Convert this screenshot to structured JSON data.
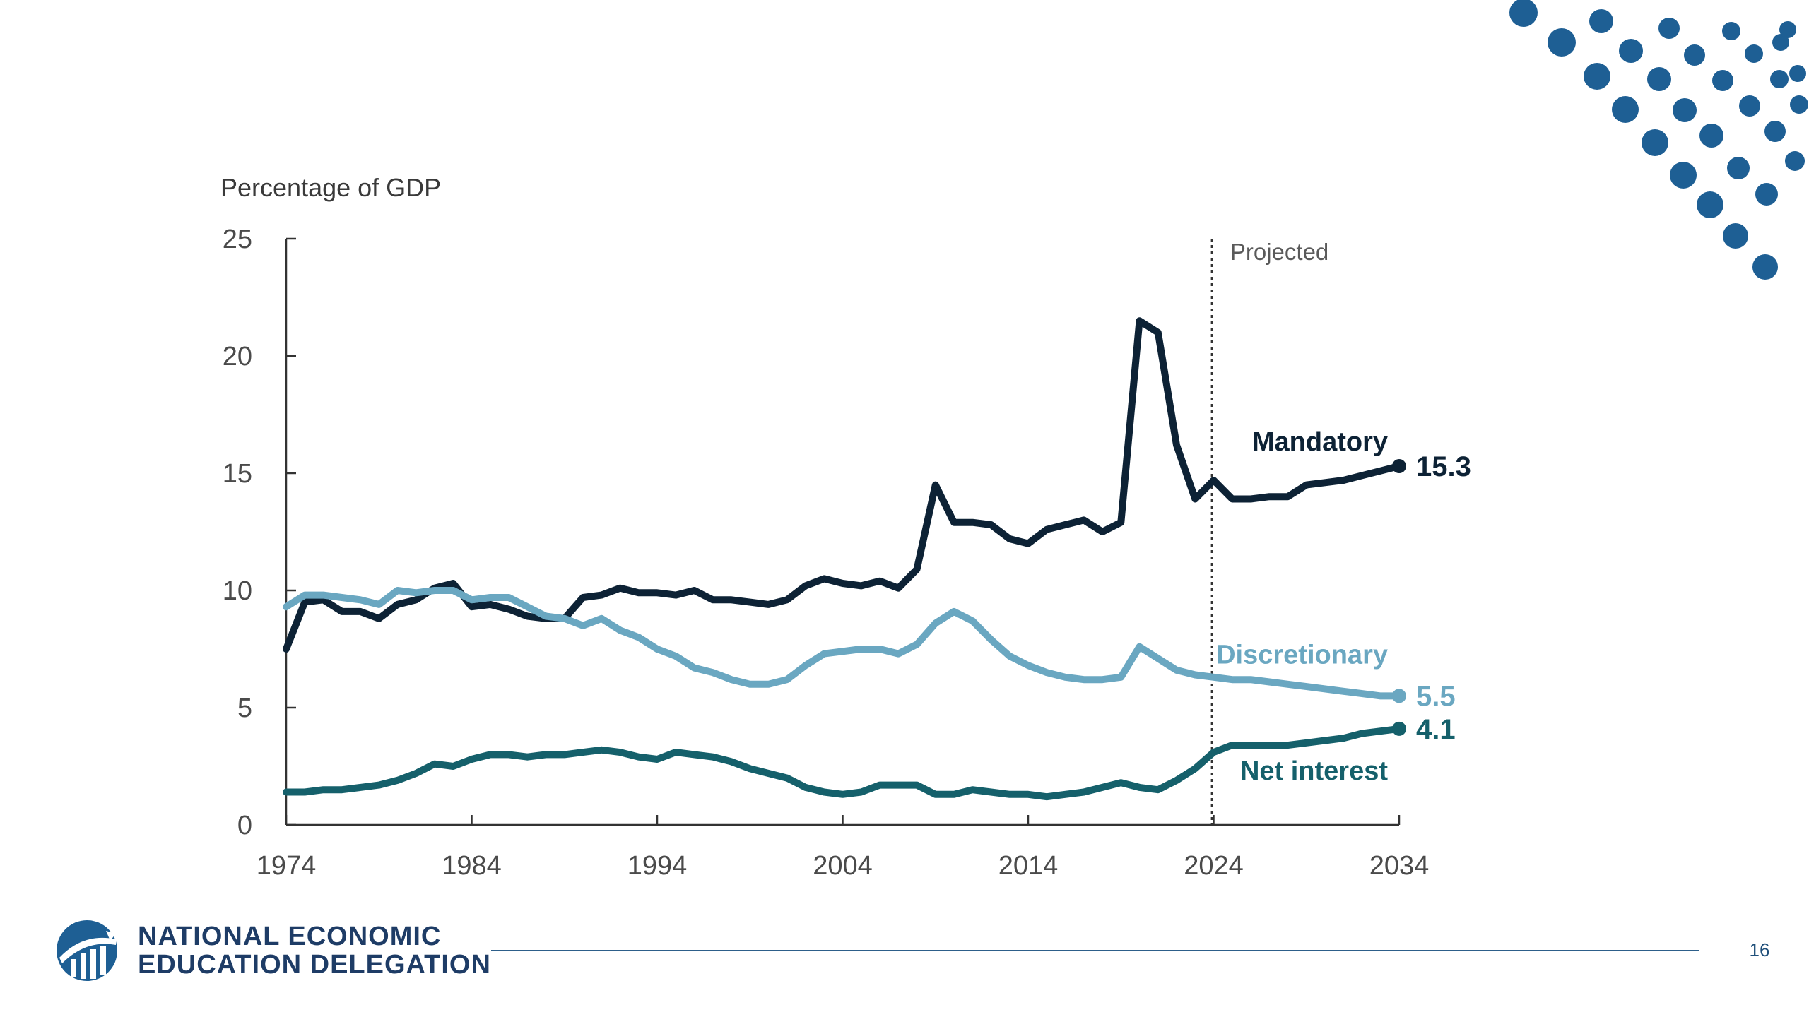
{
  "colors": {
    "mandatory": "#0d2235",
    "discretionary": "#6aa7c1",
    "net_interest": "#15606b",
    "accent_dots": "#1e5f94",
    "brand": "#1e3c66"
  },
  "footer": {
    "org_line1": "NATIONAL ECONOMIC",
    "org_line2": "EDUCATION DELEGATION",
    "page_number": "16"
  },
  "chart_data": {
    "type": "line",
    "ylabel": "Percentage of GDP",
    "xlim": [
      1974,
      2034
    ],
    "ylim": [
      0,
      25
    ],
    "x_ticks": [
      "1974",
      "1984",
      "1994",
      "2004",
      "2014",
      "2024",
      "2034"
    ],
    "y_ticks": [
      "0",
      "5",
      "10",
      "15",
      "20",
      "25"
    ],
    "projection_start": 2023.9,
    "projection_label": "Projected",
    "series": [
      {
        "name": "Mandatory",
        "end_label": "15.3",
        "color": "#0d2235",
        "x": [
          1974,
          1975,
          1976,
          1977,
          1978,
          1979,
          1980,
          1981,
          1982,
          1983,
          1984,
          1985,
          1986,
          1987,
          1988,
          1989,
          1990,
          1991,
          1992,
          1993,
          1994,
          1995,
          1996,
          1997,
          1998,
          1999,
          2000,
          2001,
          2002,
          2003,
          2004,
          2005,
          2006,
          2007,
          2008,
          2009,
          2010,
          2011,
          2012,
          2013,
          2014,
          2015,
          2016,
          2017,
          2018,
          2019,
          2020,
          2021,
          2022,
          2023,
          2024,
          2025,
          2026,
          2027,
          2028,
          2029,
          2030,
          2031,
          2032,
          2033,
          2034
        ],
        "y": [
          7.5,
          9.5,
          9.6,
          9.1,
          9.1,
          8.8,
          9.4,
          9.6,
          10.1,
          10.3,
          9.3,
          9.4,
          9.2,
          8.9,
          8.8,
          8.8,
          9.7,
          9.8,
          10.1,
          9.9,
          9.9,
          9.8,
          10.0,
          9.6,
          9.6,
          9.5,
          9.4,
          9.6,
          10.2,
          10.5,
          10.3,
          10.2,
          10.4,
          10.1,
          10.9,
          14.5,
          12.9,
          12.9,
          12.8,
          12.2,
          12.0,
          12.6,
          12.8,
          13.0,
          12.5,
          12.9,
          21.5,
          21.0,
          16.2,
          13.9,
          14.7,
          13.9,
          13.9,
          14.0,
          14.0,
          14.5,
          14.6,
          14.7,
          14.9,
          15.1,
          15.3
        ]
      },
      {
        "name": "Discretionary",
        "end_label": "5.5",
        "color": "#6aa7c1",
        "x": [
          1974,
          1975,
          1976,
          1977,
          1978,
          1979,
          1980,
          1981,
          1982,
          1983,
          1984,
          1985,
          1986,
          1987,
          1988,
          1989,
          1990,
          1991,
          1992,
          1993,
          1994,
          1995,
          1996,
          1997,
          1998,
          1999,
          2000,
          2001,
          2002,
          2003,
          2004,
          2005,
          2006,
          2007,
          2008,
          2009,
          2010,
          2011,
          2012,
          2013,
          2014,
          2015,
          2016,
          2017,
          2018,
          2019,
          2020,
          2021,
          2022,
          2023,
          2024,
          2025,
          2026,
          2027,
          2028,
          2029,
          2030,
          2031,
          2032,
          2033,
          2034
        ],
        "y": [
          9.3,
          9.8,
          9.8,
          9.7,
          9.6,
          9.4,
          10.0,
          9.9,
          10.0,
          10.0,
          9.6,
          9.7,
          9.7,
          9.3,
          8.9,
          8.8,
          8.5,
          8.8,
          8.3,
          8.0,
          7.5,
          7.2,
          6.7,
          6.5,
          6.2,
          6.0,
          6.0,
          6.2,
          6.8,
          7.3,
          7.4,
          7.5,
          7.5,
          7.3,
          7.7,
          8.6,
          9.1,
          8.7,
          7.9,
          7.2,
          6.8,
          6.5,
          6.3,
          6.2,
          6.2,
          6.3,
          7.6,
          7.1,
          6.6,
          6.4,
          6.3,
          6.2,
          6.2,
          6.1,
          6.0,
          5.9,
          5.8,
          5.7,
          5.6,
          5.5,
          5.5
        ]
      },
      {
        "name": "Net interest",
        "end_label": "4.1",
        "color": "#15606b",
        "x": [
          1974,
          1975,
          1976,
          1977,
          1978,
          1979,
          1980,
          1981,
          1982,
          1983,
          1984,
          1985,
          1986,
          1987,
          1988,
          1989,
          1990,
          1991,
          1992,
          1993,
          1994,
          1995,
          1996,
          1997,
          1998,
          1999,
          2000,
          2001,
          2002,
          2003,
          2004,
          2005,
          2006,
          2007,
          2008,
          2009,
          2010,
          2011,
          2012,
          2013,
          2014,
          2015,
          2016,
          2017,
          2018,
          2019,
          2020,
          2021,
          2022,
          2023,
          2024,
          2025,
          2026,
          2027,
          2028,
          2029,
          2030,
          2031,
          2032,
          2033,
          2034
        ],
        "y": [
          1.4,
          1.4,
          1.5,
          1.5,
          1.6,
          1.7,
          1.9,
          2.2,
          2.6,
          2.5,
          2.8,
          3.0,
          3.0,
          2.9,
          3.0,
          3.0,
          3.1,
          3.2,
          3.1,
          2.9,
          2.8,
          3.1,
          3.0,
          2.9,
          2.7,
          2.4,
          2.2,
          2.0,
          1.6,
          1.4,
          1.3,
          1.4,
          1.7,
          1.7,
          1.7,
          1.3,
          1.3,
          1.5,
          1.4,
          1.3,
          1.3,
          1.2,
          1.3,
          1.4,
          1.6,
          1.8,
          1.6,
          1.5,
          1.9,
          2.4,
          3.1,
          3.4,
          3.4,
          3.4,
          3.4,
          3.5,
          3.6,
          3.7,
          3.9,
          4.0,
          4.1
        ]
      }
    ]
  }
}
